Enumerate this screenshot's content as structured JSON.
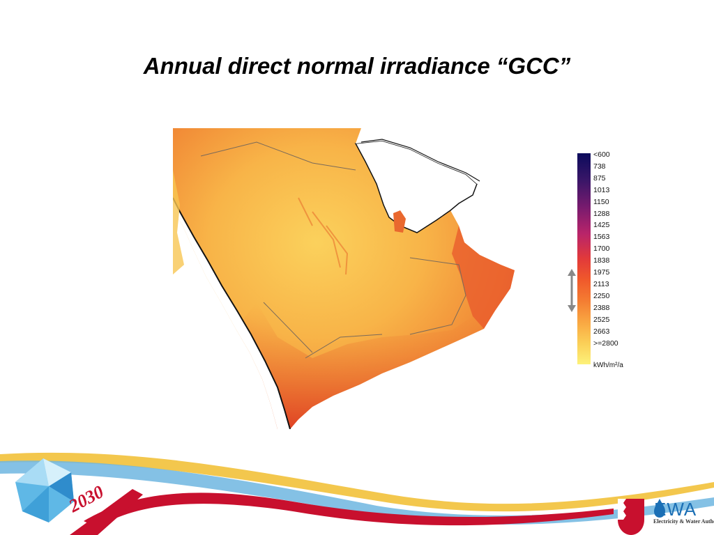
{
  "slide": {
    "title": "Annual direct normal irradiance “GCC”"
  },
  "legend": {
    "labels": [
      "<600",
      "738",
      "875",
      "1013",
      "1150",
      "1288",
      "1425",
      "1563",
      "1700",
      "1838",
      "1975",
      "2113",
      "2250",
      "2388",
      "2525",
      "2663",
      ">=2800"
    ],
    "unit": "kWh/m²/a",
    "colors": [
      "#0b0b5c",
      "#3a1668",
      "#7a1b6e",
      "#b8246a",
      "#e23a3a",
      "#f0592b",
      "#f47d32",
      "#f9a742",
      "#fbcf57",
      "#fdf27a"
    ]
  },
  "footer": {
    "vision_label": "2030",
    "logo_text": "EWA",
    "logo_subtitle": "Electricity & Water Authority"
  }
}
